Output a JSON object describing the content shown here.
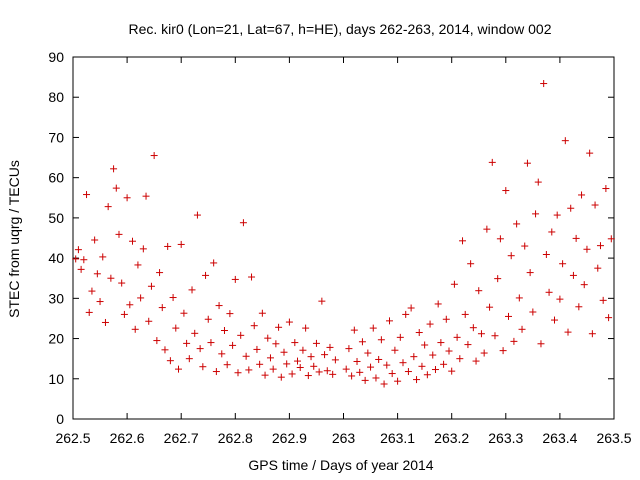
{
  "chart_data": {
    "type": "scatter",
    "title": "Rec. kir0 (Lon=21, Lat=67, h=HE), days 262-263, 2014, window 002",
    "xlabel": "GPS time / Days of year 2014",
    "ylabel": "STEC from uqrg / TECUs",
    "xlim": [
      262.5,
      263.5
    ],
    "ylim": [
      0,
      90
    ],
    "xticks": [
      "262.5",
      "262.6",
      "262.7",
      "262.8",
      "262.9",
      "263",
      "263.1",
      "263.2",
      "263.3",
      "263.4",
      "263.5"
    ],
    "yticks": [
      "0",
      "10",
      "20",
      "30",
      "40",
      "50",
      "60",
      "70",
      "80",
      "90"
    ],
    "marker": "+",
    "marker_color": "#cc0000",
    "grid": false,
    "points": [
      [
        262.505,
        39.8
      ],
      [
        262.51,
        42.1
      ],
      [
        262.515,
        37.2
      ],
      [
        262.52,
        39.6
      ],
      [
        262.525,
        55.8
      ],
      [
        262.53,
        26.5
      ],
      [
        262.535,
        31.8
      ],
      [
        262.54,
        44.5
      ],
      [
        262.545,
        36.1
      ],
      [
        262.55,
        29.2
      ],
      [
        262.555,
        40.3
      ],
      [
        262.56,
        24.0
      ],
      [
        262.565,
        52.8
      ],
      [
        262.57,
        35.0
      ],
      [
        262.575,
        62.2
      ],
      [
        262.58,
        57.4
      ],
      [
        262.585,
        45.9
      ],
      [
        262.59,
        33.8
      ],
      [
        262.595,
        26.0
      ],
      [
        262.6,
        55.0
      ],
      [
        262.605,
        28.4
      ],
      [
        262.61,
        44.2
      ],
      [
        262.615,
        22.3
      ],
      [
        262.62,
        38.3
      ],
      [
        262.625,
        30.1
      ],
      [
        262.63,
        42.3
      ],
      [
        262.635,
        55.4
      ],
      [
        262.64,
        24.3
      ],
      [
        262.645,
        33.0
      ],
      [
        262.65,
        65.5
      ],
      [
        262.655,
        19.5
      ],
      [
        262.66,
        36.4
      ],
      [
        262.665,
        27.7
      ],
      [
        262.67,
        17.2
      ],
      [
        262.675,
        42.9
      ],
      [
        262.68,
        14.5
      ],
      [
        262.685,
        30.2
      ],
      [
        262.69,
        22.6
      ],
      [
        262.695,
        12.4
      ],
      [
        262.7,
        43.4
      ],
      [
        262.705,
        26.3
      ],
      [
        262.71,
        18.8
      ],
      [
        262.715,
        15.0
      ],
      [
        262.72,
        32.1
      ],
      [
        262.725,
        21.3
      ],
      [
        262.73,
        50.7
      ],
      [
        262.735,
        17.5
      ],
      [
        262.74,
        13.0
      ],
      [
        262.745,
        35.7
      ],
      [
        262.75,
        24.8
      ],
      [
        262.755,
        19.0
      ],
      [
        262.76,
        38.8
      ],
      [
        262.765,
        11.8
      ],
      [
        262.77,
        28.2
      ],
      [
        262.775,
        16.2
      ],
      [
        262.78,
        22.0
      ],
      [
        262.785,
        13.5
      ],
      [
        262.79,
        26.2
      ],
      [
        262.795,
        18.3
      ],
      [
        262.8,
        34.7
      ],
      [
        262.805,
        11.5
      ],
      [
        262.81,
        20.8
      ],
      [
        262.815,
        48.8
      ],
      [
        262.82,
        15.6
      ],
      [
        262.825,
        12.2
      ],
      [
        262.83,
        35.3
      ],
      [
        262.835,
        23.2
      ],
      [
        262.84,
        17.3
      ],
      [
        262.845,
        13.6
      ],
      [
        262.85,
        26.3
      ],
      [
        262.855,
        10.9
      ],
      [
        262.86,
        20.1
      ],
      [
        262.865,
        15.2
      ],
      [
        262.87,
        12.4
      ],
      [
        262.875,
        18.7
      ],
      [
        262.88,
        22.8
      ],
      [
        262.885,
        10.4
      ],
      [
        262.89,
        16.6
      ],
      [
        262.895,
        13.7
      ],
      [
        262.9,
        24.1
      ],
      [
        262.905,
        11.2
      ],
      [
        262.91,
        19.0
      ],
      [
        262.915,
        14.4
      ],
      [
        262.92,
        12.8
      ],
      [
        262.925,
        17.1
      ],
      [
        262.93,
        22.6
      ],
      [
        262.935,
        10.8
      ],
      [
        262.94,
        15.5
      ],
      [
        262.945,
        13.1
      ],
      [
        262.95,
        18.8
      ],
      [
        262.955,
        11.7
      ],
      [
        262.96,
        29.3
      ],
      [
        262.965,
        16.0
      ],
      [
        262.97,
        12.0
      ],
      [
        262.975,
        17.8
      ],
      [
        262.98,
        11.1
      ],
      [
        262.985,
        14.7
      ],
      [
        263.005,
        12.4
      ],
      [
        263.01,
        17.5
      ],
      [
        263.015,
        10.7
      ],
      [
        263.02,
        22.1
      ],
      [
        263.025,
        14.3
      ],
      [
        263.03,
        11.6
      ],
      [
        263.035,
        19.2
      ],
      [
        263.04,
        9.6
      ],
      [
        263.045,
        16.4
      ],
      [
        263.05,
        12.9
      ],
      [
        263.055,
        22.6
      ],
      [
        263.06,
        10.2
      ],
      [
        263.065,
        14.8
      ],
      [
        263.07,
        19.7
      ],
      [
        263.075,
        8.7
      ],
      [
        263.08,
        13.4
      ],
      [
        263.085,
        24.4
      ],
      [
        263.09,
        11.3
      ],
      [
        263.095,
        17.1
      ],
      [
        263.1,
        9.4
      ],
      [
        263.105,
        20.3
      ],
      [
        263.11,
        14.0
      ],
      [
        263.115,
        26.0
      ],
      [
        263.12,
        11.8
      ],
      [
        263.125,
        27.6
      ],
      [
        263.13,
        15.5
      ],
      [
        263.135,
        9.8
      ],
      [
        263.14,
        21.5
      ],
      [
        263.145,
        13.1
      ],
      [
        263.15,
        18.4
      ],
      [
        263.155,
        11.0
      ],
      [
        263.16,
        23.6
      ],
      [
        263.165,
        15.9
      ],
      [
        263.17,
        12.3
      ],
      [
        263.175,
        28.6
      ],
      [
        263.18,
        19.0
      ],
      [
        263.185,
        13.6
      ],
      [
        263.19,
        24.8
      ],
      [
        263.195,
        16.9
      ],
      [
        263.2,
        11.9
      ],
      [
        263.205,
        33.5
      ],
      [
        263.21,
        20.3
      ],
      [
        263.215,
        15.0
      ],
      [
        263.22,
        44.3
      ],
      [
        263.225,
        26.0
      ],
      [
        263.23,
        18.5
      ],
      [
        263.235,
        38.6
      ],
      [
        263.24,
        22.7
      ],
      [
        263.245,
        14.4
      ],
      [
        263.25,
        31.9
      ],
      [
        263.255,
        21.2
      ],
      [
        263.26,
        16.4
      ],
      [
        263.265,
        47.2
      ],
      [
        263.27,
        27.8
      ],
      [
        263.275,
        63.8
      ],
      [
        263.28,
        20.7
      ],
      [
        263.285,
        34.9
      ],
      [
        263.29,
        44.8
      ],
      [
        263.295,
        17.0
      ],
      [
        263.3,
        56.8
      ],
      [
        263.305,
        25.5
      ],
      [
        263.31,
        40.6
      ],
      [
        263.315,
        19.3
      ],
      [
        263.32,
        48.5
      ],
      [
        263.325,
        30.1
      ],
      [
        263.33,
        22.3
      ],
      [
        263.335,
        43.0
      ],
      [
        263.34,
        63.6
      ],
      [
        263.345,
        36.4
      ],
      [
        263.35,
        26.6
      ],
      [
        263.355,
        51.0
      ],
      [
        263.36,
        58.9
      ],
      [
        263.365,
        18.7
      ],
      [
        263.37,
        83.4
      ],
      [
        263.375,
        40.9
      ],
      [
        263.38,
        31.5
      ],
      [
        263.385,
        46.5
      ],
      [
        263.39,
        24.6
      ],
      [
        263.395,
        50.7
      ],
      [
        263.4,
        29.8
      ],
      [
        263.405,
        38.6
      ],
      [
        263.41,
        69.2
      ],
      [
        263.415,
        21.6
      ],
      [
        263.42,
        52.4
      ],
      [
        263.425,
        35.7
      ],
      [
        263.43,
        44.9
      ],
      [
        263.435,
        27.9
      ],
      [
        263.44,
        55.7
      ],
      [
        263.445,
        33.4
      ],
      [
        263.45,
        42.2
      ],
      [
        263.455,
        66.1
      ],
      [
        263.46,
        21.2
      ],
      [
        263.465,
        53.2
      ],
      [
        263.47,
        37.5
      ],
      [
        263.475,
        43.1
      ],
      [
        263.48,
        29.5
      ],
      [
        263.485,
        57.3
      ],
      [
        263.49,
        25.2
      ],
      [
        263.495,
        44.8
      ]
    ]
  }
}
